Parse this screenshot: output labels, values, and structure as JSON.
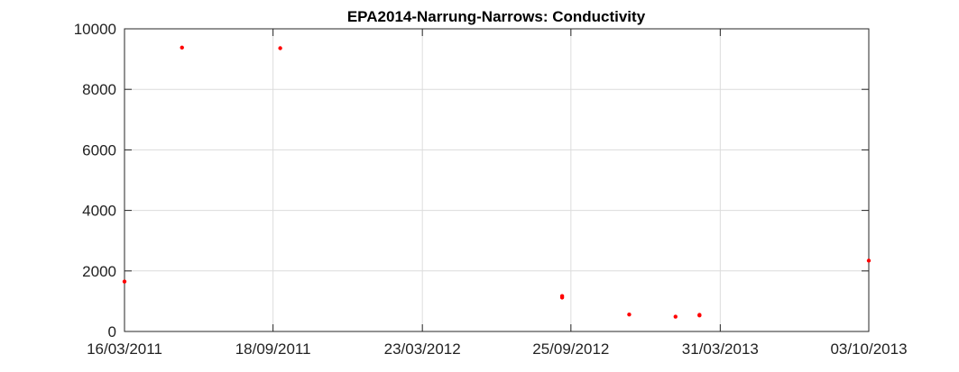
{
  "chart_data": {
    "type": "scatter",
    "title": "EPA2014-Narrung-Narrows: Conductivity",
    "xlabel": "",
    "ylabel": "",
    "x_axis": "date",
    "xlim": [
      "2011-03-16",
      "2013-10-03"
    ],
    "ylim": [
      0,
      10000
    ],
    "x_ticks": [
      "16/03/2011",
      "18/09/2011",
      "23/03/2012",
      "25/09/2012",
      "31/03/2013",
      "03/10/2013"
    ],
    "x_tick_dates": [
      "2011-03-16",
      "2011-09-18",
      "2012-03-23",
      "2012-09-25",
      "2013-03-31",
      "2013-10-03"
    ],
    "y_ticks": [
      "0",
      "2000",
      "4000",
      "6000",
      "8000",
      "10000"
    ],
    "y_tick_values": [
      0,
      2000,
      4000,
      6000,
      8000,
      10000
    ],
    "grid": true,
    "marker_color": "#ff0000",
    "series": [
      {
        "points": [
          {
            "x": "2011-03-16",
            "y": 1650
          },
          {
            "x": "2011-05-27",
            "y": 9380
          },
          {
            "x": "2011-09-27",
            "y": 9360
          },
          {
            "x": "2012-09-14",
            "y": 1120
          },
          {
            "x": "2012-09-14",
            "y": 1170
          },
          {
            "x": "2012-12-07",
            "y": 560
          },
          {
            "x": "2013-02-03",
            "y": 490
          },
          {
            "x": "2013-03-05",
            "y": 550
          },
          {
            "x": "2013-03-05",
            "y": 530
          },
          {
            "x": "2013-10-03",
            "y": 2340
          }
        ]
      }
    ]
  }
}
